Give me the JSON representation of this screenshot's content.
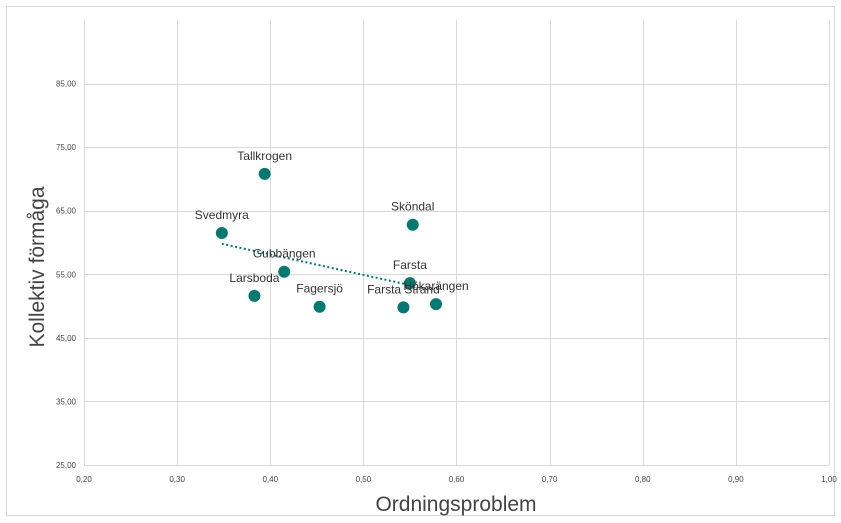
{
  "chart_data": {
    "type": "scatter",
    "title": "",
    "xlabel": "Ordningsproblem",
    "ylabel": "Kollektiv förmåga",
    "xlim": [
      0.2,
      1.0
    ],
    "ylim": [
      25,
      95
    ],
    "x_ticks": [
      {
        "value": 0.2,
        "label": "0,20"
      },
      {
        "value": 0.3,
        "label": "0,30"
      },
      {
        "value": 0.4,
        "label": "0,40"
      },
      {
        "value": 0.5,
        "label": "0,50"
      },
      {
        "value": 0.6,
        "label": "0,60"
      },
      {
        "value": 0.7,
        "label": "0,70"
      },
      {
        "value": 0.8,
        "label": "0,80"
      },
      {
        "value": 0.9,
        "label": "0,90"
      },
      {
        "value": 1.0,
        "label": "1,00"
      }
    ],
    "y_ticks": [
      {
        "value": 25,
        "label": "25,00"
      },
      {
        "value": 35,
        "label": "35,00"
      },
      {
        "value": 45,
        "label": "45,00"
      },
      {
        "value": 55,
        "label": "55,00"
      },
      {
        "value": 65,
        "label": "65,00"
      },
      {
        "value": 75,
        "label": "75,00"
      },
      {
        "value": 85,
        "label": "85,00"
      }
    ],
    "grid": true,
    "point_color": "#007a70",
    "trendline_color": "#007a70",
    "series": [
      {
        "points": [
          {
            "label": "Tallkrogen",
            "x": 0.394,
            "y": 70.8
          },
          {
            "label": "Sköndal",
            "x": 0.553,
            "y": 62.8
          },
          {
            "label": "Svedmyra",
            "x": 0.348,
            "y": 61.5
          },
          {
            "label": "Gubbängen",
            "x": 0.415,
            "y": 55.4
          },
          {
            "label": "Farsta",
            "x": 0.55,
            "y": 53.6
          },
          {
            "label": "Larsboda",
            "x": 0.383,
            "y": 51.6
          },
          {
            "label": "Hökarängen",
            "x": 0.578,
            "y": 50.3
          },
          {
            "label": "Fagersjö",
            "x": 0.453,
            "y": 49.9
          },
          {
            "label": "Farsta Strand",
            "x": 0.543,
            "y": 49.8
          }
        ]
      }
    ],
    "trendline": {
      "type": "linear",
      "x": [
        0.348,
        0.553
      ],
      "y": [
        59.8,
        53.2
      ]
    }
  }
}
